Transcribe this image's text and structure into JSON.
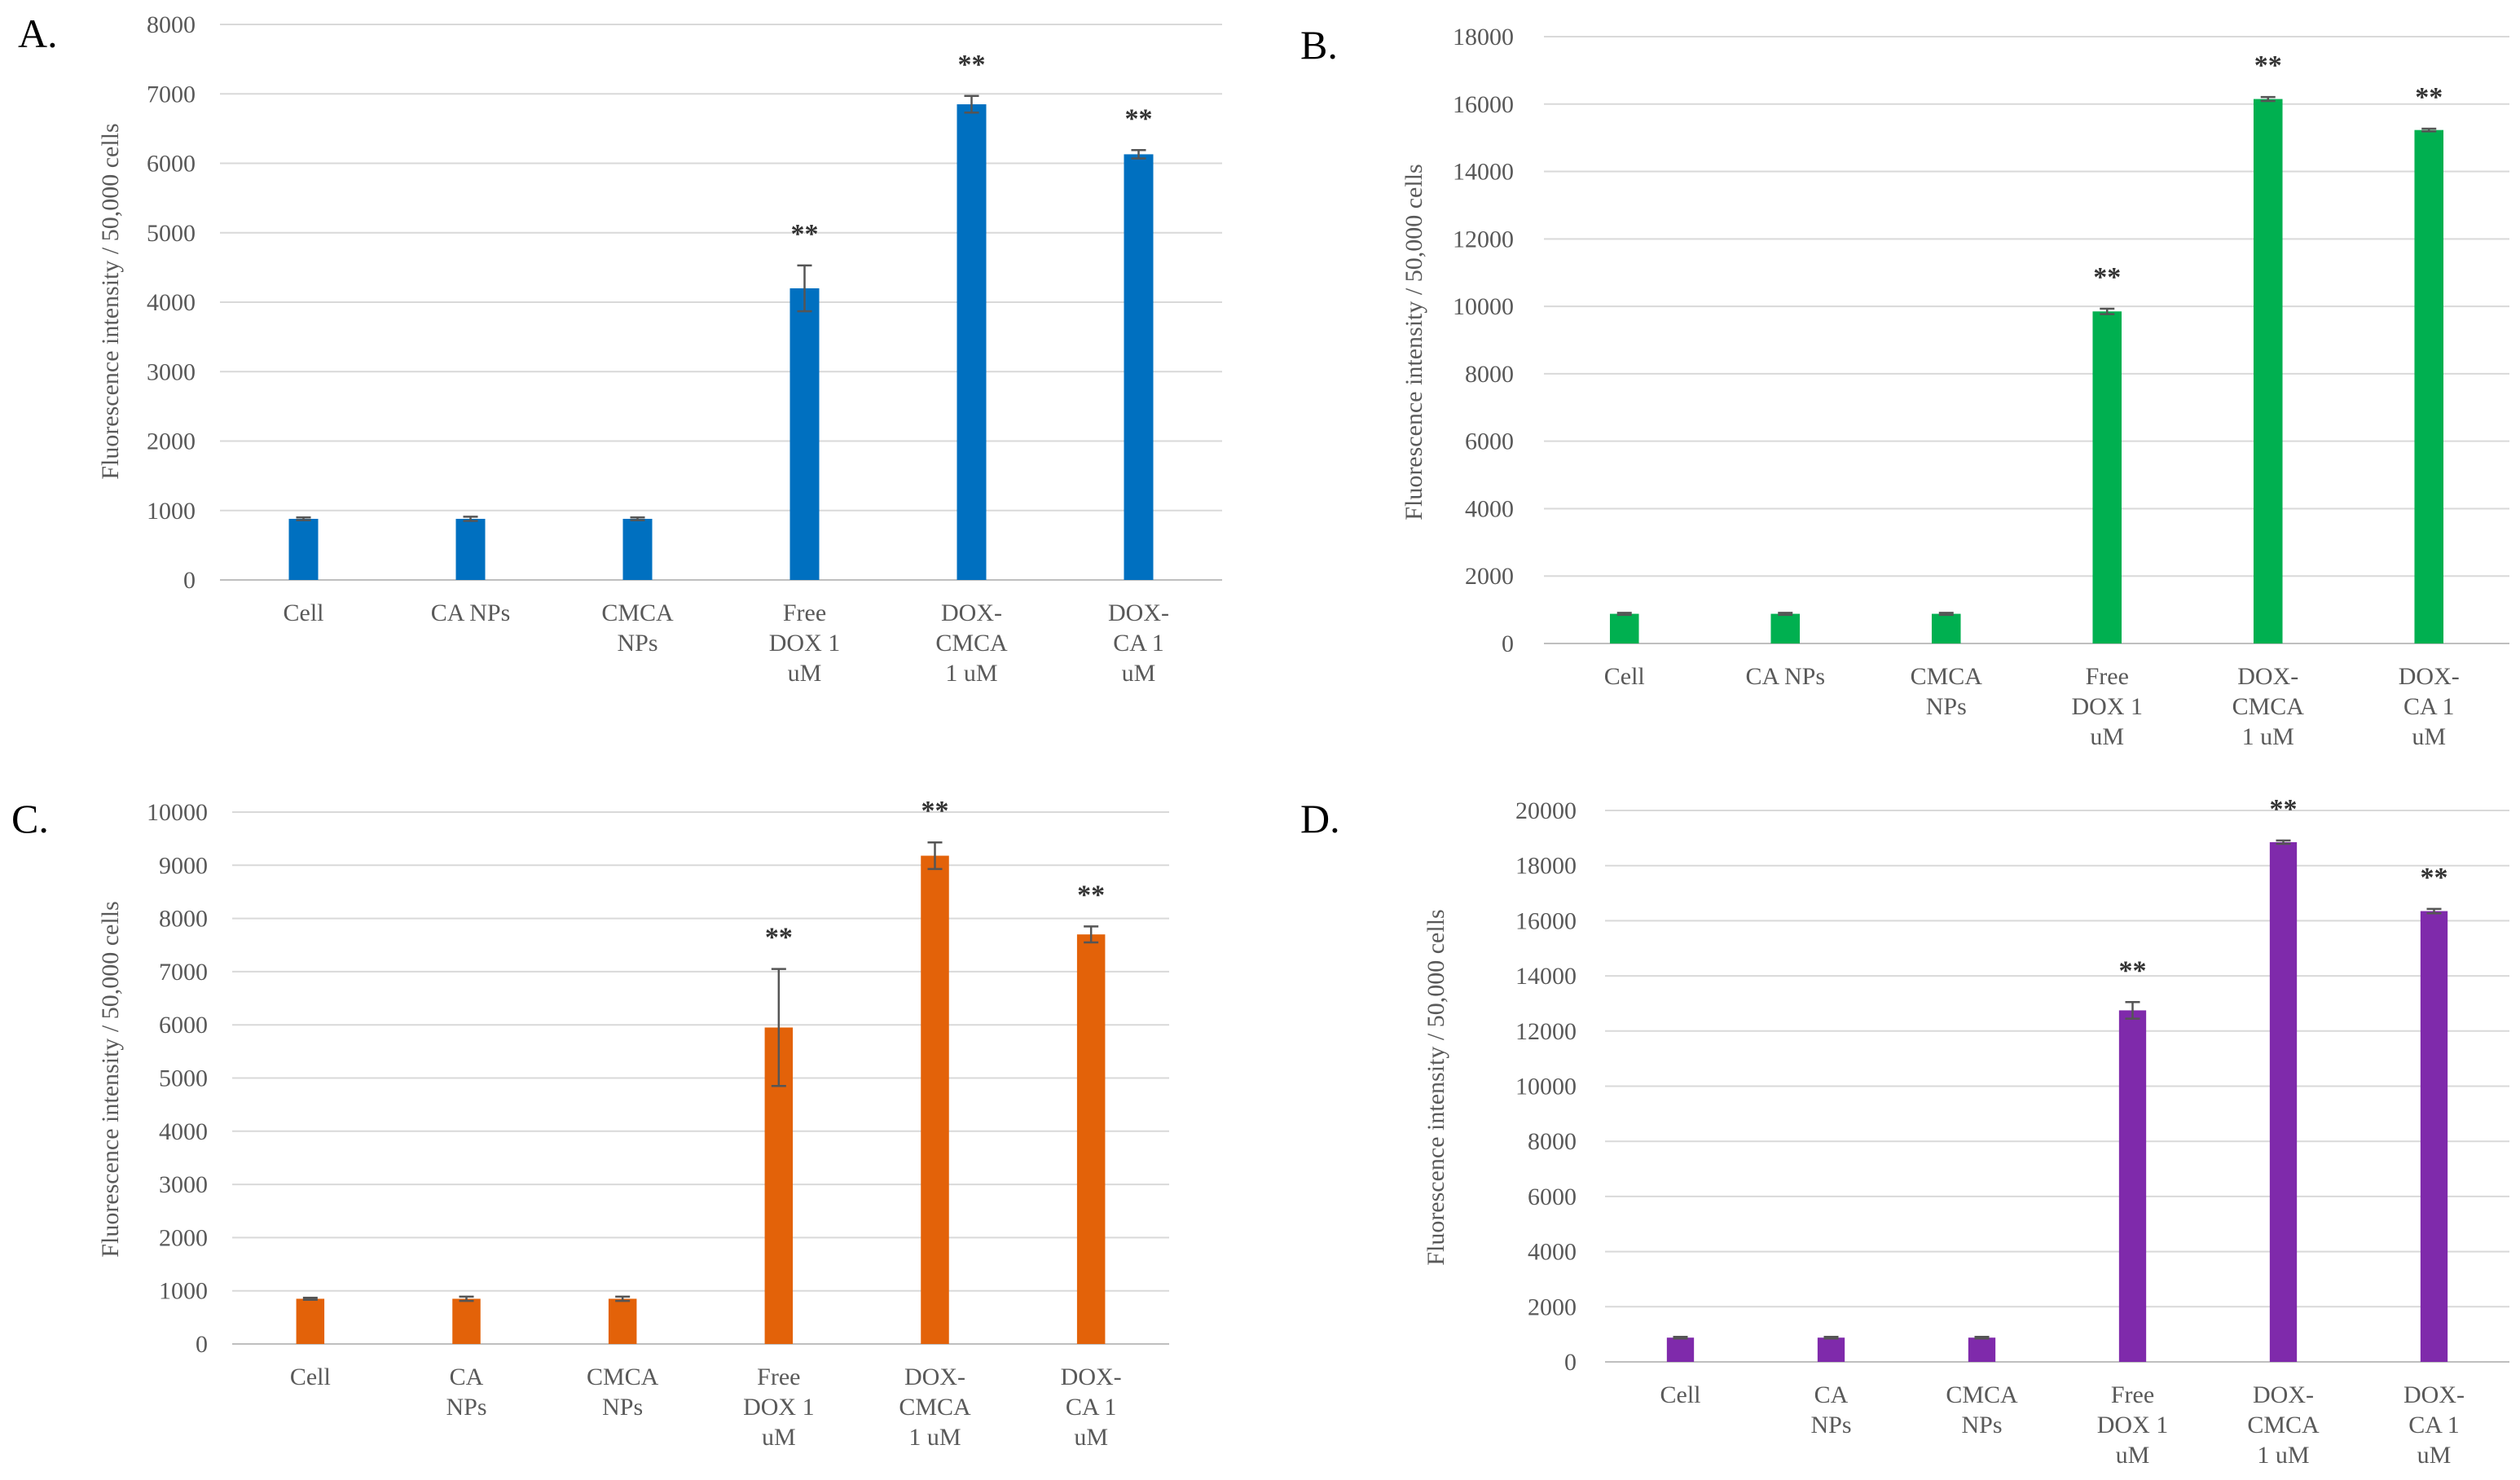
{
  "chart_data": [
    {
      "type": "bar",
      "panel": "A.",
      "ylabel": "Fluorescence intensity / 50,000 cells",
      "ylim": [
        0,
        8000
      ],
      "yticks": [
        "0",
        "1000",
        "2000",
        "3000",
        "4000",
        "5000",
        "6000",
        "7000",
        "8000"
      ],
      "color": "#0070C0",
      "categories": [
        [
          "Cell"
        ],
        [
          "CA NPs"
        ],
        [
          "CMCA",
          "NPs"
        ],
        [
          "Free",
          "DOX 1",
          "uM"
        ],
        [
          "DOX-",
          "CMCA",
          "1 uM"
        ],
        [
          "DOX-",
          "CA 1",
          "uM"
        ]
      ],
      "values": [
        880,
        880,
        880,
        4200,
        6850,
        6130
      ],
      "errors": [
        20,
        30,
        20,
        330,
        120,
        60
      ],
      "significance": [
        "",
        "",
        "",
        "**",
        "**",
        "**"
      ]
    },
    {
      "type": "bar",
      "panel": "B.",
      "ylabel": "Fluorescence intensity / 50,000 cells",
      "ylim": [
        0,
        18000
      ],
      "yticks": [
        "0",
        "2000",
        "4000",
        "6000",
        "8000",
        "10000",
        "12000",
        "14000",
        "16000",
        "18000"
      ],
      "color": "#00B050",
      "categories": [
        [
          "Cell"
        ],
        [
          "CA NPs"
        ],
        [
          "CMCA",
          "NPs"
        ],
        [
          "Free",
          "DOX 1",
          "uM"
        ],
        [
          "DOX-",
          "CMCA",
          "1 uM"
        ],
        [
          "DOX-",
          "CA 1",
          "uM"
        ]
      ],
      "values": [
        880,
        880,
        880,
        9850,
        16150,
        15230
      ],
      "errors": [
        30,
        30,
        30,
        80,
        60,
        40
      ],
      "significance": [
        "",
        "",
        "",
        "**",
        "**",
        "**"
      ]
    },
    {
      "type": "bar",
      "panel": "C.",
      "ylabel": "Fluorescence intensity / 50,000 cells",
      "ylim": [
        0,
        10000
      ],
      "yticks": [
        "0",
        "1000",
        "2000",
        "3000",
        "4000",
        "5000",
        "6000",
        "7000",
        "8000",
        "9000",
        "10000"
      ],
      "color": "#E36209",
      "categories": [
        [
          "Cell"
        ],
        [
          "CA",
          "NPs"
        ],
        [
          "CMCA",
          "NPs"
        ],
        [
          "Free",
          "DOX 1",
          "uM"
        ],
        [
          "DOX-",
          "CMCA",
          "1 uM"
        ],
        [
          "DOX-",
          "CA 1",
          "uM"
        ]
      ],
      "values": [
        850,
        850,
        850,
        5950,
        9180,
        7700
      ],
      "errors": [
        20,
        40,
        40,
        1100,
        250,
        150
      ],
      "significance": [
        "",
        "",
        "",
        "**",
        "**",
        "**"
      ]
    },
    {
      "type": "bar",
      "panel": "D.",
      "ylabel": "Fluorescence intensity / 50,000 cells",
      "ylim": [
        0,
        20000
      ],
      "yticks": [
        "0",
        "2000",
        "4000",
        "6000",
        "8000",
        "10000",
        "12000",
        "14000",
        "16000",
        "18000",
        "20000"
      ],
      "color": "#7F2AAB",
      "categories": [
        [
          "Cell"
        ],
        [
          "CA",
          "NPs"
        ],
        [
          "CMCA",
          "NPs"
        ],
        [
          "Free",
          "DOX 1",
          "uM"
        ],
        [
          "DOX-",
          "CMCA",
          "1 uM"
        ],
        [
          "DOX-",
          "CA 1",
          "uM"
        ]
      ],
      "values": [
        880,
        880,
        880,
        12750,
        18850,
        16350
      ],
      "errors": [
        30,
        30,
        30,
        300,
        60,
        80
      ],
      "significance": [
        "",
        "",
        "",
        "**",
        "**",
        "**"
      ]
    }
  ]
}
